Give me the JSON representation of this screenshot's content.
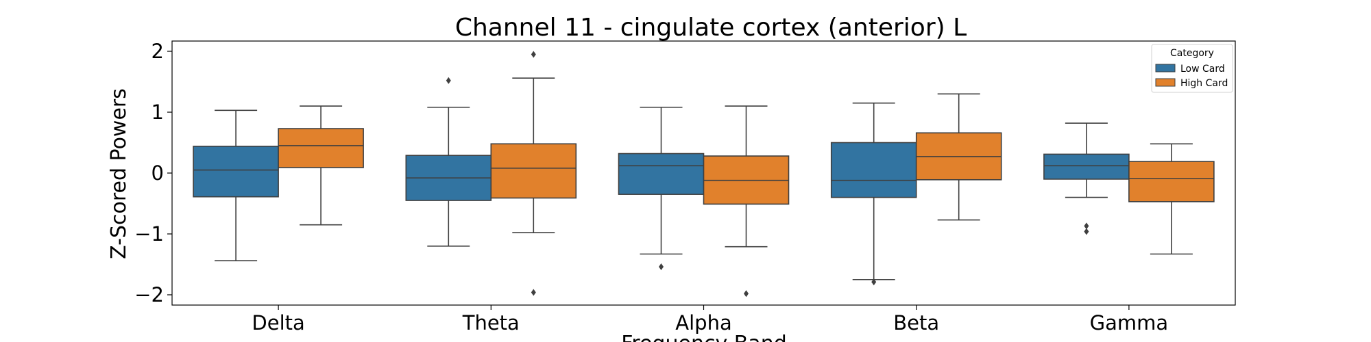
{
  "chart_data": {
    "type": "box",
    "title": "Channel 11 - cingulate cortex (anterior) L",
    "xlabel": "Frequency Band",
    "ylabel": "Z-Scored Powers",
    "categories": [
      "Delta",
      "Theta",
      "Alpha",
      "Beta",
      "Gamma"
    ],
    "ylim": [
      -2.15,
      2.15
    ],
    "yticks": [
      2,
      1,
      0,
      -1,
      -2
    ],
    "ytick_labels": [
      "2",
      "1",
      "0",
      "−1",
      "−2"
    ],
    "grid": false,
    "legend": {
      "title": "Category",
      "placement": "top-right",
      "entries": [
        "Low Card",
        "High Card"
      ]
    },
    "series": [
      {
        "name": "Low Card",
        "color": "#3274a1",
        "boxes": [
          {
            "category": "Delta",
            "whislo": -1.44,
            "q1": -0.39,
            "med": 0.05,
            "q3": 0.44,
            "whishi": 1.03,
            "fliers": []
          },
          {
            "category": "Theta",
            "whislo": -1.2,
            "q1": -0.45,
            "med": -0.08,
            "q3": 0.29,
            "whishi": 1.08,
            "fliers": [
              1.52
            ]
          },
          {
            "category": "Alpha",
            "whislo": -1.33,
            "q1": -0.35,
            "med": 0.12,
            "q3": 0.32,
            "whishi": 1.08,
            "fliers": [
              -1.54
            ]
          },
          {
            "category": "Beta",
            "whislo": -1.75,
            "q1": -0.4,
            "med": -0.12,
            "q3": 0.5,
            "whishi": 1.15,
            "fliers": [
              -1.79
            ]
          },
          {
            "category": "Gamma",
            "whislo": -0.4,
            "q1": -0.1,
            "med": 0.12,
            "q3": 0.31,
            "whishi": 0.82,
            "fliers": [
              -0.87,
              -0.96
            ]
          }
        ]
      },
      {
        "name": "High Card",
        "color": "#e1812c",
        "boxes": [
          {
            "category": "Delta",
            "whislo": -0.85,
            "q1": 0.09,
            "med": 0.45,
            "q3": 0.73,
            "whishi": 1.1,
            "fliers": []
          },
          {
            "category": "Theta",
            "whislo": -0.98,
            "q1": -0.41,
            "med": 0.08,
            "q3": 0.48,
            "whishi": 1.56,
            "fliers": [
              1.95,
              -1.96
            ]
          },
          {
            "category": "Alpha",
            "whislo": -1.21,
            "q1": -0.51,
            "med": -0.12,
            "q3": 0.28,
            "whishi": 1.1,
            "fliers": [
              -1.98
            ]
          },
          {
            "category": "Beta",
            "whislo": -0.77,
            "q1": -0.11,
            "med": 0.27,
            "q3": 0.66,
            "whishi": 1.3,
            "fliers": []
          },
          {
            "category": "Gamma",
            "whislo": -1.33,
            "q1": -0.47,
            "med": -0.09,
            "q3": 0.19,
            "whishi": 0.48,
            "fliers": []
          }
        ]
      }
    ]
  }
}
